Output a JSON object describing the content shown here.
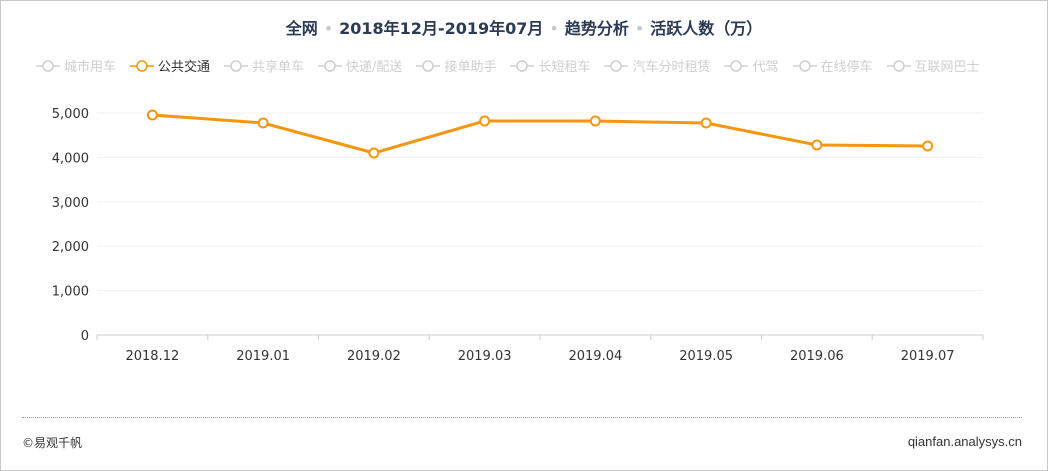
{
  "title": {
    "parts": [
      "全网",
      "2018年12月-2019年07月",
      "趋势分析",
      "活跃人数（万）"
    ]
  },
  "legend": [
    {
      "label": "城市用车",
      "active": false
    },
    {
      "label": "公共交通",
      "active": true
    },
    {
      "label": "共享单车",
      "active": false
    },
    {
      "label": "快递/配送",
      "active": false
    },
    {
      "label": "接单助手",
      "active": false
    },
    {
      "label": "长短租车",
      "active": false
    },
    {
      "label": "汽车分时租赁",
      "active": false
    },
    {
      "label": "代驾",
      "active": false
    },
    {
      "label": "在线停车",
      "active": false
    },
    {
      "label": "互联网巴士",
      "active": false
    }
  ],
  "colors": {
    "series": "#f7960e",
    "inactive": "#cfcfcf",
    "title": "#2c3a55"
  },
  "footer": {
    "left": "©易观千帆",
    "right": "qianfan.analysys.cn"
  },
  "chart_data": {
    "type": "line",
    "title": "全网 · 2018年12月-2019年07月 · 趋势分析 · 活跃人数（万）",
    "xlabel": "",
    "ylabel": "活跃人数（万）",
    "categories": [
      "2018.12",
      "2019.01",
      "2019.02",
      "2019.03",
      "2019.04",
      "2019.05",
      "2019.06",
      "2019.07"
    ],
    "series": [
      {
        "name": "公共交通",
        "values": [
          4955,
          4775,
          4099,
          4820,
          4820,
          4775,
          4279,
          4257
        ]
      }
    ],
    "yticks": [
      "0",
      "1,000",
      "2,000",
      "3,000",
      "4,000",
      "5,000"
    ],
    "ylim": [
      0,
      5000
    ],
    "grid": true,
    "legend_position": "top"
  }
}
